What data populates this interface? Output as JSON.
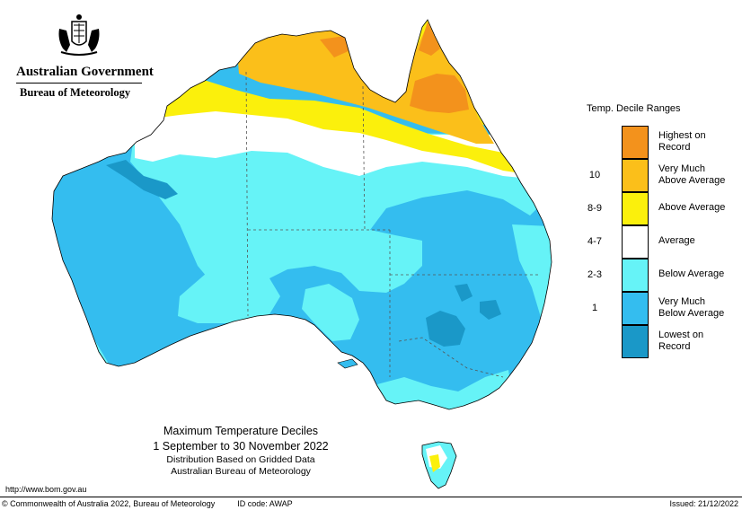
{
  "header": {
    "org_name": "Australian Government",
    "agency": "Bureau of Meteorology",
    "crest_icon": "coat-of-arms-icon"
  },
  "legend": {
    "title": "Temp. Decile Ranges",
    "items": [
      {
        "label": "Highest on\nRecord",
        "decile": "",
        "color": "#f3921c"
      },
      {
        "label": "Very Much\nAbove Average",
        "decile": "10",
        "color": "#fbbf1a"
      },
      {
        "label": "Above Average",
        "decile": "8-9",
        "color": "#fbf00c"
      },
      {
        "label": "Average",
        "decile": "4-7",
        "color": "#ffffff"
      },
      {
        "label": "Below Average",
        "decile": "2-3",
        "color": "#66f3f7"
      },
      {
        "label": "Very Much\nBelow Average",
        "decile": "1",
        "color": "#34bdef"
      },
      {
        "label": "Lowest on\nRecord",
        "decile": "",
        "color": "#1a98c8"
      }
    ]
  },
  "caption": {
    "title": "Maximum Temperature Deciles",
    "period": "1 September to 30 November 2022",
    "line3": "Distribution Based on Gridded Data",
    "line4": "Australian Bureau of Meteorology"
  },
  "footer": {
    "url": "http://www.bom.gov.au",
    "copyright": "© Commonwealth of Australia 2022, Bureau of Meteorology",
    "id_code": "ID code: AWAP",
    "issued": "Issued: 21/12/2022"
  }
}
